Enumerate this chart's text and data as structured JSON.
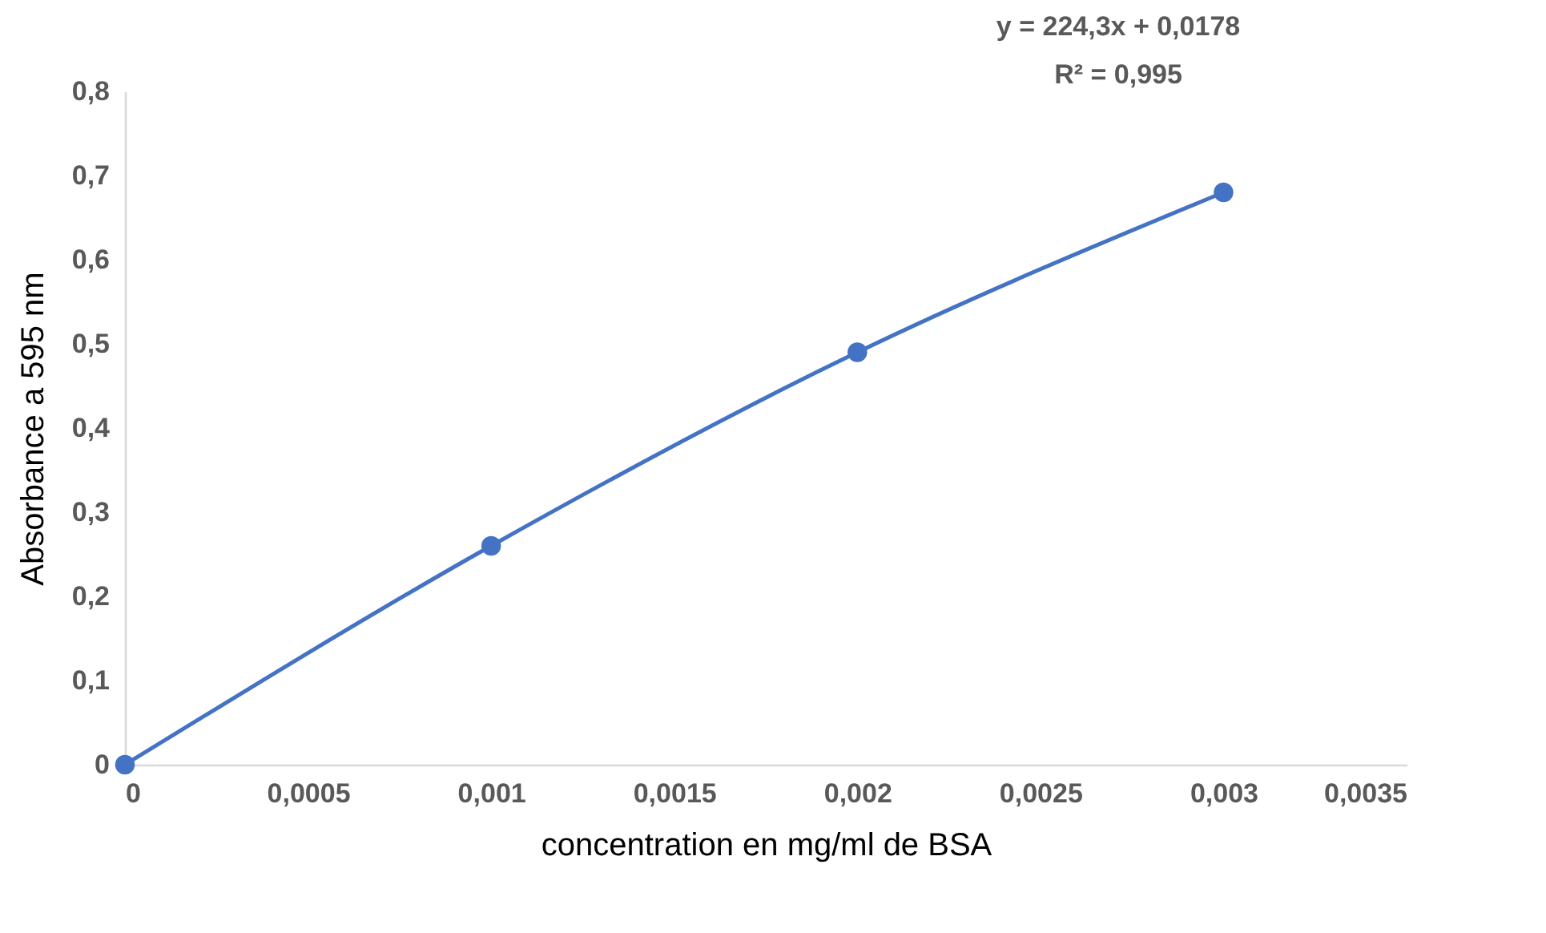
{
  "chart_data": {
    "type": "line",
    "xlabel": "concentration en mg/ml de BSA",
    "ylabel": "Absorbance a 595 nm",
    "x": [
      0,
      0.001,
      0.002,
      0.003
    ],
    "series": [
      {
        "color": "#4472c4",
        "values": [
          0,
          0.26,
          0.49,
          0.68
        ]
      }
    ],
    "xlim": [
      0,
      0.0035
    ],
    "xticks": [
      0,
      {
        "value": 0.0005,
        "label": "0,0005"
      },
      {
        "value": 0.001,
        "label": "0,001"
      },
      {
        "value": 0.0015,
        "label": "0,0015"
      },
      {
        "value": 0.002,
        "label": "0,002"
      },
      {
        "value": 0.0025,
        "label": "0,0025"
      },
      {
        "value": 0.003,
        "label": "0,003"
      },
      {
        "value": 0.0035,
        "label": "0,0035"
      }
    ],
    "ylim": [
      0,
      0.8
    ],
    "yticks": [
      0,
      {
        "value": 0.1,
        "label": "0,1"
      },
      {
        "value": 0.2,
        "label": "0,2"
      },
      {
        "value": 0.3,
        "label": "0,3"
      },
      {
        "value": 0.4,
        "label": "0,4"
      },
      {
        "value": 0.5,
        "label": "0,5"
      },
      {
        "value": 0.6,
        "label": "0,6"
      },
      {
        "value": 0.7,
        "label": "0,7"
      },
      {
        "value": 0.8,
        "label": "0,8"
      }
    ],
    "annotations": [
      "y = 224,3x + 0,0178",
      "R² = 0,995"
    ],
    "grid": false,
    "marker": "circle",
    "line_style": "solid"
  }
}
